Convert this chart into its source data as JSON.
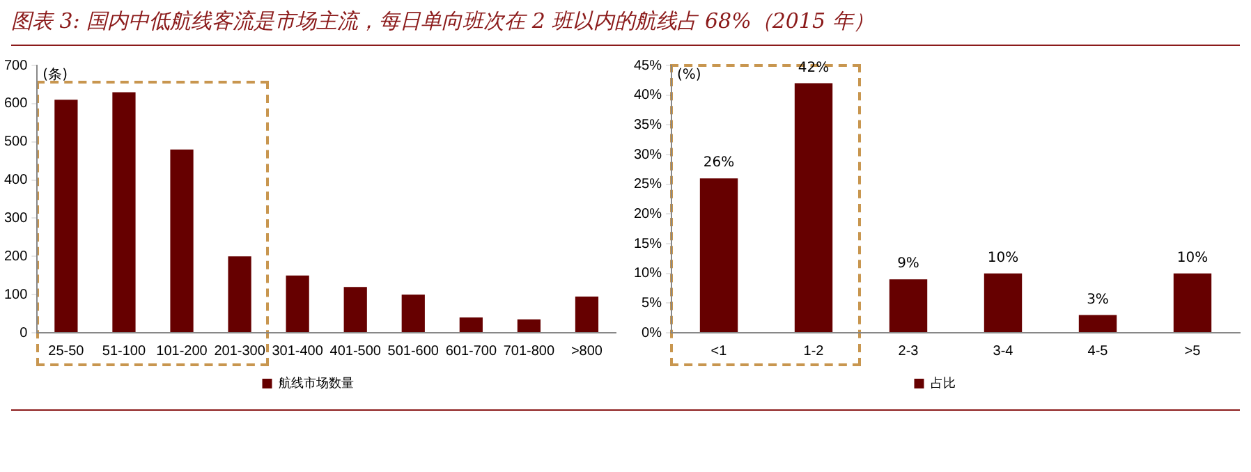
{
  "chart_data": [
    {
      "type": "bar",
      "title": "图表 3: 国内中低航线客流是市场主流，每日单向班次在 2 班以内的航线占 68%（2015 年）",
      "ylabel": "(条)",
      "categories": [
        "25-50",
        "51-100",
        "101-200",
        "201-300",
        "301-400",
        "401-500",
        "501-600",
        "601-700",
        "701-800",
        ">800"
      ],
      "series": [
        {
          "name": "航线市场数量",
          "color": "#660000",
          "values": [
            610,
            630,
            480,
            200,
            150,
            120,
            100,
            40,
            35,
            95
          ]
        }
      ],
      "ylim": [
        0,
        700
      ],
      "yticks": [
        0,
        100,
        200,
        300,
        400,
        500,
        600,
        700
      ],
      "grid": false,
      "legend": "bottom"
    },
    {
      "type": "bar",
      "ylabel": "(%)",
      "categories": [
        "<1",
        "1-2",
        "2-3",
        "3-4",
        "4-5",
        ">5"
      ],
      "series": [
        {
          "name": "占比",
          "color": "#660000",
          "values": [
            26,
            42,
            9,
            10,
            3,
            10
          ],
          "value_labels": [
            "26%",
            "42%",
            "9%",
            "10%",
            "3%",
            "10%"
          ]
        }
      ],
      "ylim": [
        0,
        45
      ],
      "yticks": [
        {
          "value": 0,
          "label": "0%"
        },
        {
          "value": 5,
          "label": "5%"
        },
        {
          "value": 10,
          "label": "10%"
        },
        {
          "value": 15,
          "label": "15%"
        },
        {
          "value": 20,
          "label": "20%"
        },
        {
          "value": 25,
          "label": "25%"
        },
        {
          "value": 30,
          "label": "30%"
        },
        {
          "value": 35,
          "label": "35%"
        },
        {
          "value": 40,
          "label": "40%"
        },
        {
          "value": 45,
          "label": "45%"
        }
      ],
      "grid": false,
      "legend": "bottom"
    }
  ]
}
